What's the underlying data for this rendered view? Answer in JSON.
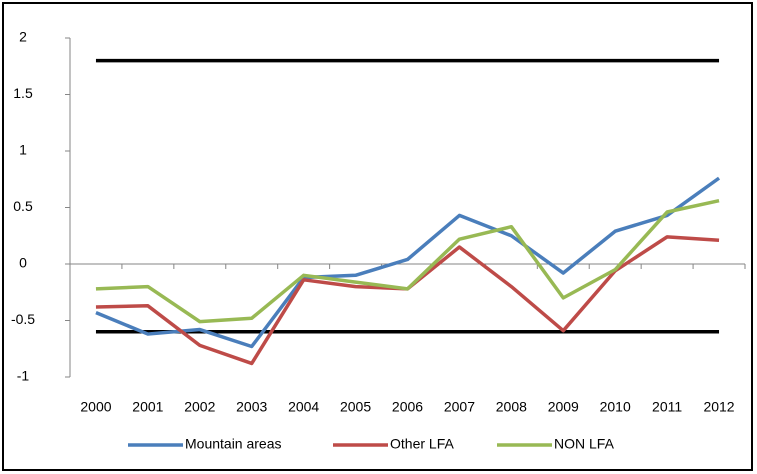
{
  "chart_data": {
    "type": "line",
    "categories": [
      "2000",
      "2001",
      "2002",
      "2003",
      "2004",
      "2005",
      "2006",
      "2007",
      "2008",
      "2009",
      "2010",
      "2011",
      "2012"
    ],
    "series": [
      {
        "name": "Mountain areas",
        "color": "#4a7ebb",
        "values": [
          -0.43,
          -0.62,
          -0.58,
          -0.73,
          -0.12,
          -0.1,
          0.04,
          0.43,
          0.25,
          -0.08,
          0.29,
          0.43,
          0.76
        ]
      },
      {
        "name": "Other LFA",
        "color": "#be4b48",
        "values": [
          -0.38,
          -0.37,
          -0.72,
          -0.88,
          -0.14,
          -0.2,
          -0.22,
          0.15,
          -0.2,
          -0.59,
          -0.06,
          0.24,
          0.21
        ]
      },
      {
        "name": "NON LFA",
        "color": "#98b954",
        "values": [
          -0.22,
          -0.2,
          -0.51,
          -0.48,
          -0.1,
          -0.16,
          -0.22,
          0.22,
          0.33,
          -0.3,
          -0.05,
          0.46,
          0.56
        ]
      }
    ],
    "reference_lines": [
      1.8,
      -0.6
    ],
    "reference_color": "#000000",
    "ylim": [
      -1,
      2
    ],
    "yticks": [
      -1,
      -0.5,
      0,
      0.5,
      1,
      1.5,
      2
    ],
    "legend": "bottom",
    "grid": false
  }
}
